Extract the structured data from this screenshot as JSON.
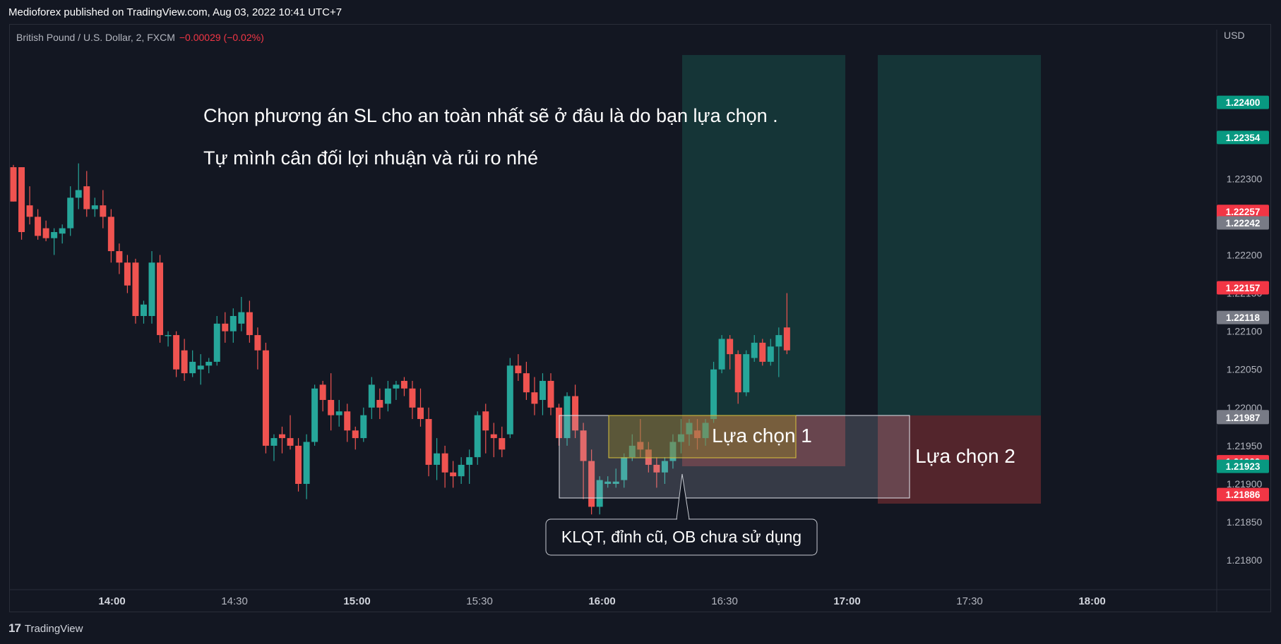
{
  "header": {
    "published": "Medioforex published on TradingView.com, Aug 03, 2022 10:41 UTC+7"
  },
  "symbol": {
    "name": "British Pound / U.S. Dollar, 2, FXCM",
    "change": "−0.00029 (−0.02%)"
  },
  "footer": {
    "brand": "TradingView",
    "logo_mark": "17"
  },
  "chart_data": {
    "type": "candlestick",
    "currency_label": "USD",
    "y_ticks": [
      "1.21800",
      "1.21850",
      "1.21900",
      "1.21950",
      "1.22000",
      "1.22050",
      "1.22100",
      "1.22150",
      "1.22200",
      "1.22250",
      "1.22300",
      "1.22350",
      "1.22400"
    ],
    "y_range": [
      1.21778,
      1.22462
    ],
    "x_ticks": [
      {
        "label": "14:00",
        "bold": true
      },
      {
        "label": "14:30",
        "bold": false
      },
      {
        "label": "15:00",
        "bold": true
      },
      {
        "label": "15:30",
        "bold": false
      },
      {
        "label": "16:00",
        "bold": true
      },
      {
        "label": "16:30",
        "bold": false
      },
      {
        "label": "17:00",
        "bold": true
      },
      {
        "label": "17:30",
        "bold": false
      },
      {
        "label": "18:00",
        "bold": true
      }
    ],
    "x_range": [
      "13:35",
      "18:30"
    ],
    "price_badges": [
      {
        "value": "1.22400",
        "color": "#089981"
      },
      {
        "value": "1.22354",
        "color": "#089981"
      },
      {
        "value": "1.22257",
        "color": "#f23645"
      },
      {
        "value": "1.22242",
        "color": "#787b86"
      },
      {
        "value": "1.22157",
        "color": "#f23645"
      },
      {
        "value": "1.22118",
        "color": "#787b86"
      },
      {
        "value": "1.21988",
        "color": "#787b86"
      },
      {
        "value": "1.21987",
        "color": "#787b86"
      },
      {
        "value": "1.21929",
        "color": "#f23645"
      },
      {
        "value": "1.21923",
        "color": "#089981"
      },
      {
        "value": "1.21886",
        "color": "#f23645"
      }
    ],
    "colors": {
      "up": "#26a69a",
      "down": "#ef5350",
      "background": "#131722",
      "grid": "#2a2e39",
      "axis_text": "#b2b5be"
    },
    "candles_ohlc": [
      [
        1.22315,
        1.22318,
        1.2227,
        1.2227
      ],
      [
        1.22315,
        1.22315,
        1.2222,
        1.2223
      ],
      [
        1.22265,
        1.2229,
        1.2224,
        1.2225
      ],
      [
        1.2225,
        1.2226,
        1.2222,
        1.22225
      ],
      [
        1.22235,
        1.22245,
        1.22218,
        1.22222
      ],
      [
        1.22222,
        1.22235,
        1.222,
        1.2223
      ],
      [
        1.22228,
        1.2224,
        1.22215,
        1.22235
      ],
      [
        1.22235,
        1.2229,
        1.22225,
        1.22275
      ],
      [
        1.22275,
        1.2232,
        1.2226,
        1.22285
      ],
      [
        1.2229,
        1.2231,
        1.2225,
        1.2226
      ],
      [
        1.2226,
        1.22275,
        1.2225,
        1.22265
      ],
      [
        1.22265,
        1.22285,
        1.22235,
        1.2225
      ],
      [
        1.2225,
        1.2226,
        1.2219,
        1.22205
      ],
      [
        1.22205,
        1.22215,
        1.22175,
        1.2219
      ],
      [
        1.2219,
        1.222,
        1.2215,
        1.2216
      ],
      [
        1.2219,
        1.22195,
        1.2211,
        1.2212
      ],
      [
        1.2212,
        1.2214,
        1.2211,
        1.22135
      ],
      [
        1.2212,
        1.22205,
        1.2211,
        1.2219
      ],
      [
        1.2219,
        1.222,
        1.22085,
        1.22095
      ],
      [
        1.22095,
        1.221,
        1.2208,
        1.22095
      ],
      [
        1.22095,
        1.221,
        1.2204,
        1.2205
      ],
      [
        1.22075,
        1.2209,
        1.22035,
        1.22045
      ],
      [
        1.22045,
        1.22075,
        1.2204,
        1.2206
      ],
      [
        1.2205,
        1.2207,
        1.2203,
        1.22055
      ],
      [
        1.22055,
        1.22065,
        1.22045,
        1.2206
      ],
      [
        1.2206,
        1.2212,
        1.22055,
        1.2211
      ],
      [
        1.2211,
        1.22125,
        1.22085,
        1.221
      ],
      [
        1.221,
        1.2213,
        1.22085,
        1.2212
      ],
      [
        1.2211,
        1.22145,
        1.221,
        1.22125
      ],
      [
        1.22125,
        1.2214,
        1.22085,
        1.22095
      ],
      [
        1.22095,
        1.22105,
        1.2205,
        1.22075
      ],
      [
        1.22075,
        1.22085,
        1.2194,
        1.2195
      ],
      [
        1.2195,
        1.21965,
        1.2193,
        1.2196
      ],
      [
        1.21965,
        1.21975,
        1.2194,
        1.2196
      ],
      [
        1.2196,
        1.2199,
        1.21945,
        1.2195
      ],
      [
        1.2195,
        1.2196,
        1.2189,
        1.219
      ],
      [
        1.219,
        1.21965,
        1.2188,
        1.21955
      ],
      [
        1.21955,
        1.2203,
        1.2195,
        1.22025
      ],
      [
        1.2203,
        1.22035,
        1.21995,
        1.2201
      ],
      [
        1.2201,
        1.22045,
        1.2197,
        1.2199
      ],
      [
        1.2199,
        1.2201,
        1.21975,
        1.21995
      ],
      [
        1.21995,
        1.22005,
        1.21955,
        1.2197
      ],
      [
        1.2197,
        1.21975,
        1.21945,
        1.2196
      ],
      [
        1.2196,
        1.22,
        1.21955,
        1.2199
      ],
      [
        1.22,
        1.2204,
        1.21985,
        1.2203
      ],
      [
        1.2201,
        1.22025,
        1.21985,
        1.22
      ],
      [
        1.22005,
        1.22035,
        1.21995,
        1.22025
      ],
      [
        1.22025,
        1.22035,
        1.2201,
        1.2203
      ],
      [
        1.22035,
        1.2204,
        1.22015,
        1.22025
      ],
      [
        1.22025,
        1.22035,
        1.21985,
        1.22
      ],
      [
        1.22,
        1.22025,
        1.21975,
        1.21985
      ],
      [
        1.21985,
        1.22,
        1.2191,
        1.21925
      ],
      [
        1.21925,
        1.2196,
        1.21905,
        1.2194
      ],
      [
        1.2194,
        1.2195,
        1.21895,
        1.21915
      ],
      [
        1.21915,
        1.2193,
        1.21895,
        1.2191
      ],
      [
        1.2191,
        1.21935,
        1.219,
        1.21925
      ],
      [
        1.21925,
        1.21945,
        1.219,
        1.21935
      ],
      [
        1.21935,
        1.21995,
        1.21925,
        1.2199
      ],
      [
        1.21995,
        1.22005,
        1.2194,
        1.2197
      ],
      [
        1.21965,
        1.2198,
        1.21935,
        1.2196
      ],
      [
        1.2196,
        1.21975,
        1.21935,
        1.21945
      ],
      [
        1.21965,
        1.22065,
        1.2196,
        1.22055
      ],
      [
        1.22055,
        1.2207,
        1.22035,
        1.22045
      ],
      [
        1.22045,
        1.2206,
        1.2201,
        1.2202
      ],
      [
        1.2202,
        1.2204,
        1.2199,
        1.22005
      ],
      [
        1.2201,
        1.22045,
        1.2199,
        1.22035
      ],
      [
        1.22035,
        1.22045,
        1.2199,
        1.22
      ],
      [
        1.22,
        1.22005,
        1.2195,
        1.2196
      ],
      [
        1.2196,
        1.2202,
        1.2195,
        1.22015
      ],
      [
        1.22015,
        1.2203,
        1.2196,
        1.2197
      ],
      [
        1.2197,
        1.2198,
        1.2188,
        1.2193
      ],
      [
        1.2193,
        1.21945,
        1.2186,
        1.2187
      ],
      [
        1.2187,
        1.2191,
        1.2186,
        1.21905
      ],
      [
        1.219,
        1.2191,
        1.21895,
        1.21903
      ],
      [
        1.219,
        1.2192,
        1.21895,
        1.21903
      ],
      [
        1.21905,
        1.2194,
        1.21895,
        1.21935
      ],
      [
        1.21935,
        1.21965,
        1.2193,
        1.2195
      ],
      [
        1.21955,
        1.21985,
        1.21935,
        1.21945
      ],
      [
        1.21945,
        1.21955,
        1.21915,
        1.21925
      ],
      [
        1.21925,
        1.21935,
        1.21895,
        1.21915
      ],
      [
        1.21915,
        1.21935,
        1.219,
        1.2193
      ],
      [
        1.2193,
        1.21965,
        1.2192,
        1.21955
      ],
      [
        1.21955,
        1.21985,
        1.2194,
        1.21965
      ],
      [
        1.21965,
        1.21985,
        1.2195,
        1.2198
      ],
      [
        1.2197,
        1.21985,
        1.21945,
        1.2196
      ],
      [
        1.2196,
        1.21985,
        1.2195,
        1.2198
      ],
      [
        1.21985,
        1.2206,
        1.2198,
        1.2205
      ],
      [
        1.2205,
        1.22095,
        1.22045,
        1.2209
      ],
      [
        1.2209,
        1.22095,
        1.2205,
        1.2207
      ],
      [
        1.2207,
        1.22075,
        1.22005,
        1.2202
      ],
      [
        1.2202,
        1.22075,
        1.22015,
        1.2207
      ],
      [
        1.22065,
        1.22095,
        1.2206,
        1.22085
      ],
      [
        1.22085,
        1.2209,
        1.22055,
        1.2206
      ],
      [
        1.2206,
        1.2209,
        1.22055,
        1.2208
      ],
      [
        1.2208,
        1.22105,
        1.2204,
        1.22095
      ],
      [
        1.22105,
        1.2215,
        1.2207,
        1.22075
      ]
    ]
  },
  "annotations": {
    "line1": "Chọn phương án SL cho an toàn nhất sẽ ở đâu là do bạn lựa chọn .",
    "line2": "Tự mình cân đối lợi nhuận và rủi ro nhé",
    "option1": "Lựa chọn 1",
    "option2": "Lựa chọn 2",
    "callout": "KLQT, đỉnh cũ, OB chưa sử dụng"
  }
}
